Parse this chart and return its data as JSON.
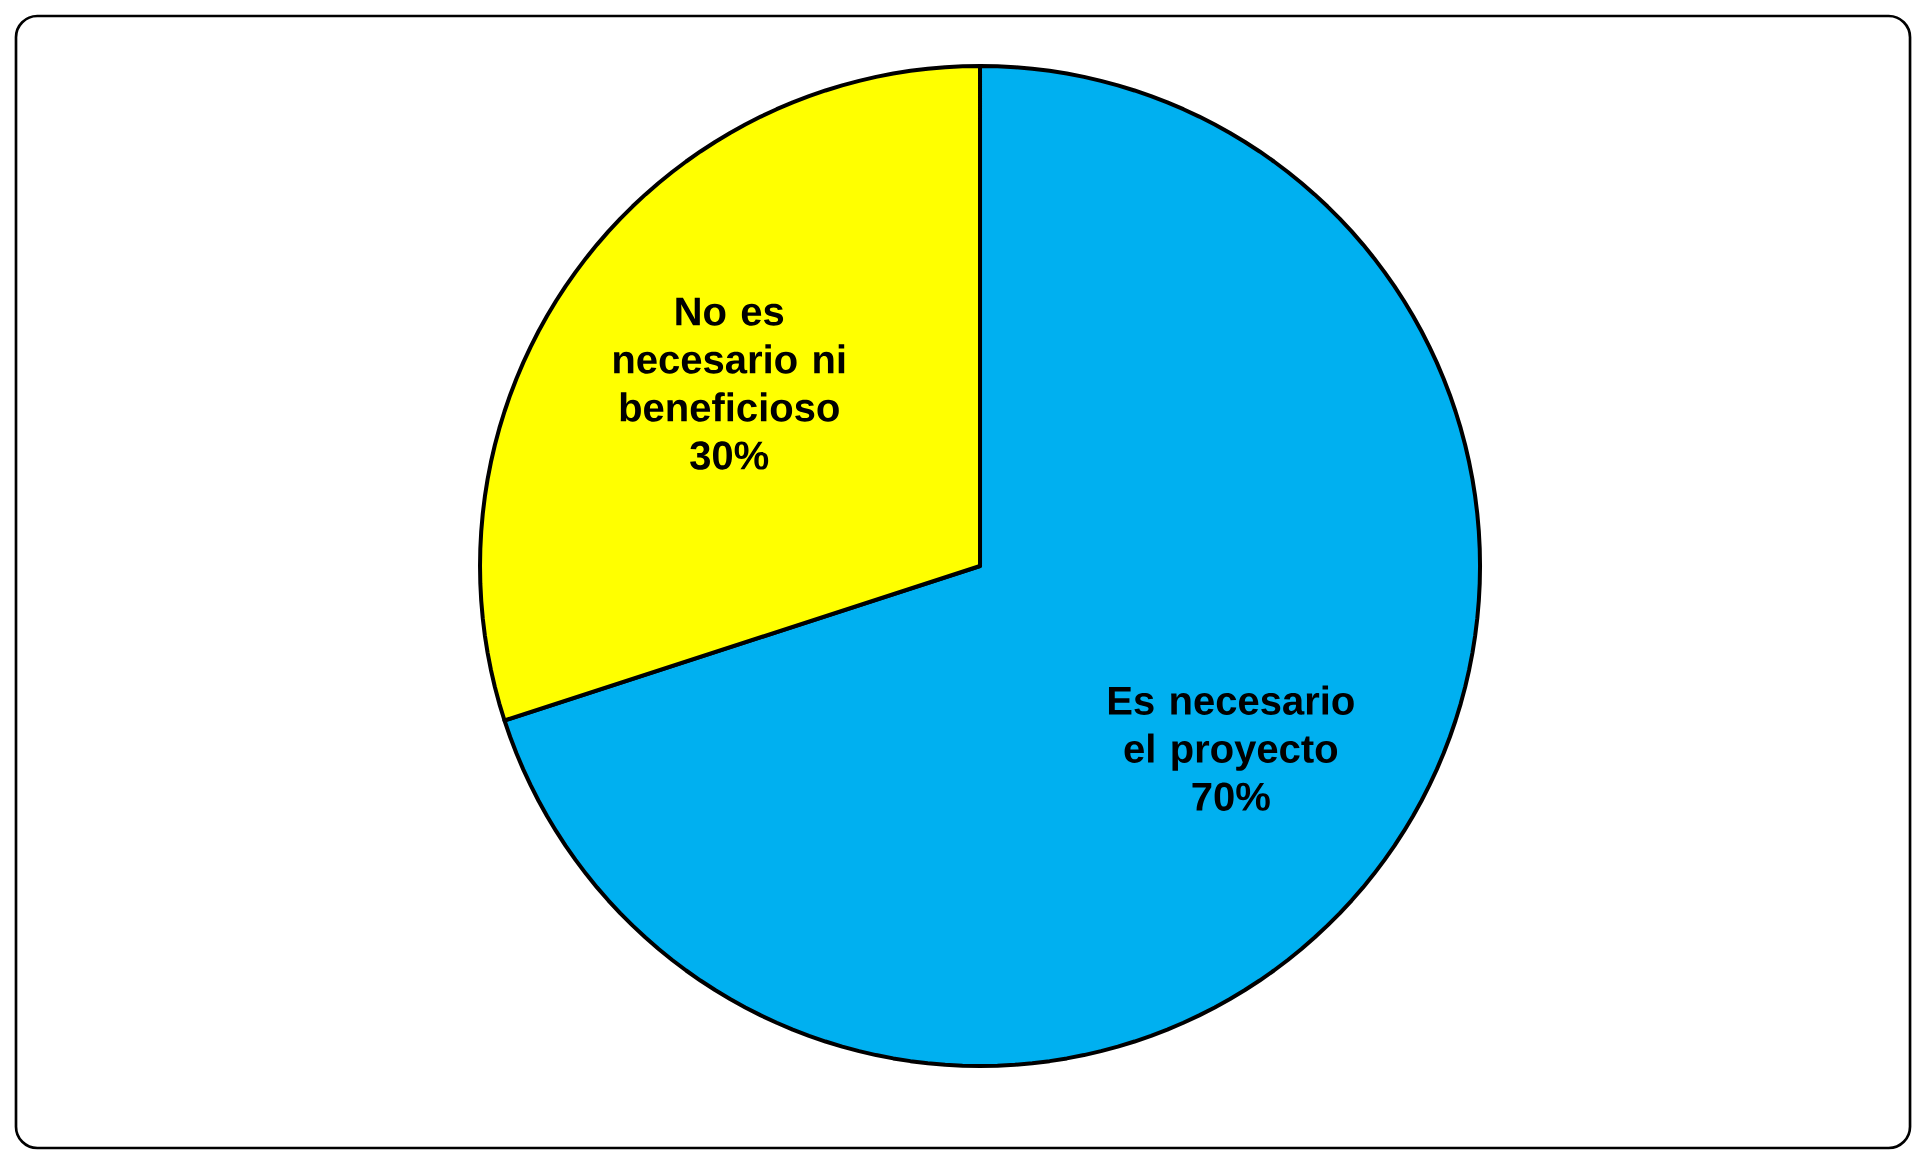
{
  "chart_data": {
    "type": "pie",
    "categories": [
      "Es necesario el proyecto",
      "No es necesario ni beneficioso"
    ],
    "values": [
      70,
      30
    ],
    "value_labels": [
      "70%",
      "30%"
    ],
    "colors": [
      "#00b0f0",
      "#ffff00"
    ]
  }
}
